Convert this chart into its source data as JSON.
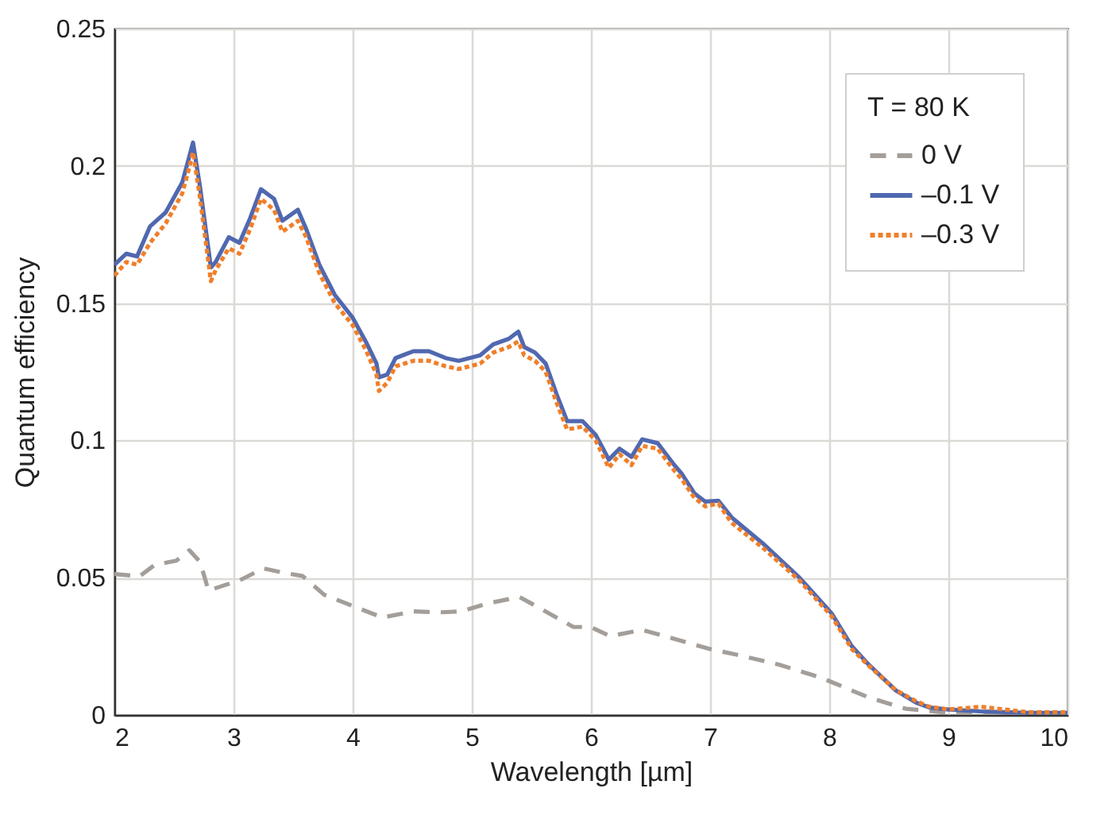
{
  "chart_data": {
    "type": "line",
    "xlabel": "Wavelength [µm]",
    "ylabel": "Quantum efficiency",
    "legend_title": "T = 80 K",
    "xlim": [
      2,
      10
    ],
    "xticks": [
      2,
      3,
      4,
      5,
      6,
      7,
      8,
      9,
      10
    ],
    "ylim": [
      0,
      0.25
    ],
    "yticks": [
      0,
      0.05,
      0.1,
      0.15,
      0.2,
      0.25
    ],
    "grid": true,
    "legend": "top right",
    "series": [
      {
        "name": "0 V",
        "color": "#a39e99",
        "line_style": "dashed",
        "x": [
          2.0,
          2.21,
          2.34,
          2.52,
          2.63,
          2.72,
          2.79,
          2.92,
          3.05,
          3.25,
          3.41,
          3.58,
          3.76,
          4.03,
          4.25,
          4.51,
          4.74,
          4.91,
          5.13,
          5.4,
          5.62,
          5.85,
          6.0,
          6.16,
          6.43,
          6.7,
          7.0,
          7.22,
          7.58,
          7.93,
          8.24,
          8.33,
          8.64,
          9.0,
          9.67,
          10
        ],
        "values": [
          0.0513,
          0.0505,
          0.0547,
          0.0562,
          0.06,
          0.0557,
          0.0453,
          0.0472,
          0.049,
          0.0534,
          0.0519,
          0.0506,
          0.0438,
          0.0392,
          0.0355,
          0.0377,
          0.0374,
          0.0377,
          0.0406,
          0.043,
          0.0377,
          0.0321,
          0.032,
          0.0287,
          0.031,
          0.0277,
          0.024,
          0.022,
          0.0183,
          0.0136,
          0.008,
          0.0064,
          0.0023,
          0.0008,
          0.0004,
          0.0004
        ]
      },
      {
        "name": "–0.1 V",
        "color": "#5068b0",
        "line_style": "solid",
        "x": [
          2.0,
          2.1,
          2.19,
          2.3,
          2.43,
          2.57,
          2.62,
          2.66,
          2.72,
          2.81,
          2.85,
          2.96,
          3.05,
          3.14,
          3.23,
          3.34,
          3.41,
          3.54,
          3.61,
          3.72,
          3.85,
          4.0,
          4.11,
          4.2,
          4.22,
          4.29,
          4.36,
          4.51,
          4.64,
          4.78,
          4.89,
          5.07,
          5.18,
          5.31,
          5.39,
          5.44,
          5.53,
          5.62,
          5.71,
          5.8,
          5.93,
          6.04,
          6.15,
          6.24,
          6.34,
          6.43,
          6.56,
          6.7,
          6.76,
          6.87,
          6.96,
          7.07,
          7.18,
          7.44,
          7.75,
          8.02,
          8.19,
          8.33,
          8.56,
          8.73,
          8.84,
          9.0,
          9.27,
          9.67,
          10
        ],
        "values": [
          0.164,
          0.168,
          0.167,
          0.178,
          0.183,
          0.194,
          0.202,
          0.2085,
          0.192,
          0.163,
          0.165,
          0.174,
          0.172,
          0.181,
          0.1915,
          0.188,
          0.18,
          0.184,
          0.177,
          0.164,
          0.153,
          0.1447,
          0.136,
          0.128,
          0.123,
          0.124,
          0.13,
          0.1325,
          0.1325,
          0.13,
          0.129,
          0.131,
          0.135,
          0.137,
          0.1396,
          0.134,
          0.132,
          0.128,
          0.117,
          0.107,
          0.107,
          0.102,
          0.093,
          0.097,
          0.094,
          0.1004,
          0.099,
          0.091,
          0.088,
          0.0806,
          0.0777,
          0.078,
          0.072,
          0.0626,
          0.05,
          0.037,
          0.025,
          0.0184,
          0.0089,
          0.0045,
          0.0027,
          0.002,
          0.0013,
          0.0008,
          0.0008
        ]
      },
      {
        "name": "–0.3 V",
        "color": "#f07f2a",
        "line_style": "dotted",
        "x": [
          2.0,
          2.1,
          2.19,
          2.3,
          2.43,
          2.57,
          2.62,
          2.66,
          2.72,
          2.81,
          2.85,
          2.96,
          3.05,
          3.14,
          3.23,
          3.34,
          3.41,
          3.54,
          3.61,
          3.72,
          3.85,
          4.0,
          4.11,
          4.2,
          4.22,
          4.29,
          4.36,
          4.51,
          4.64,
          4.78,
          4.89,
          5.07,
          5.18,
          5.31,
          5.39,
          5.44,
          5.53,
          5.62,
          5.71,
          5.8,
          5.93,
          6.04,
          6.15,
          6.24,
          6.34,
          6.43,
          6.56,
          6.7,
          6.76,
          6.87,
          6.96,
          7.07,
          7.18,
          7.44,
          7.75,
          8.02,
          8.19,
          8.33,
          8.56,
          8.73,
          8.84,
          9.0,
          9.27,
          9.67,
          10
        ],
        "values": [
          0.16,
          0.165,
          0.164,
          0.172,
          0.179,
          0.19,
          0.198,
          0.205,
          0.188,
          0.158,
          0.162,
          0.17,
          0.168,
          0.177,
          0.188,
          0.184,
          0.176,
          0.18,
          0.174,
          0.161,
          0.15,
          0.142,
          0.133,
          0.124,
          0.118,
          0.121,
          0.127,
          0.129,
          0.129,
          0.127,
          0.126,
          0.128,
          0.132,
          0.134,
          0.136,
          0.131,
          0.129,
          0.125,
          0.114,
          0.104,
          0.105,
          0.1,
          0.09,
          0.095,
          0.091,
          0.098,
          0.097,
          0.089,
          0.086,
          0.079,
          0.076,
          0.077,
          0.07,
          0.061,
          0.049,
          0.036,
          0.024,
          0.018,
          0.009,
          0.005,
          0.003,
          0.002,
          0.003,
          0.001,
          0.001
        ]
      }
    ]
  }
}
